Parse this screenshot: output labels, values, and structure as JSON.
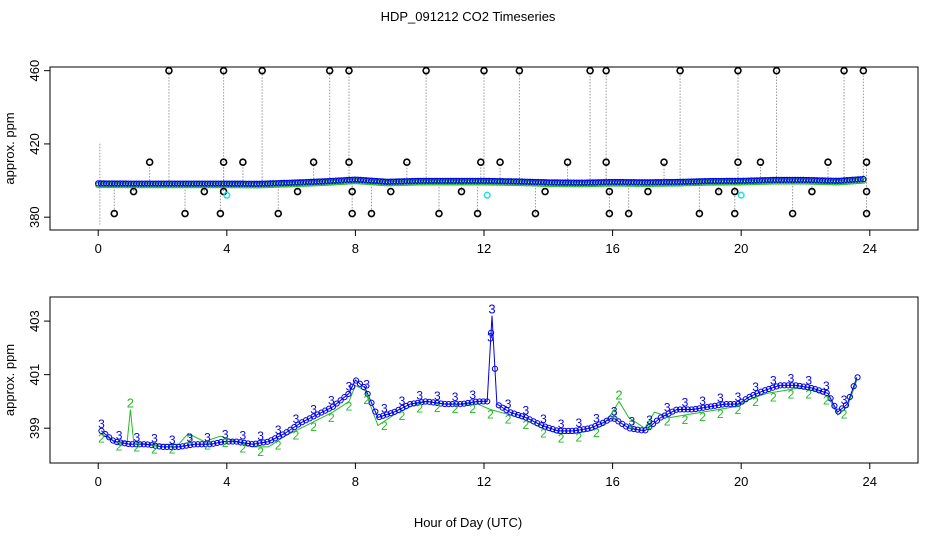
{
  "figure": {
    "title": "HDP_091212  CO2 Timeseries",
    "xlabel": "Hour of Day (UTC)"
  },
  "colors": {
    "black": "#000000",
    "blue": "#0000ee",
    "green": "#22bb22",
    "cyan": "#22dddd",
    "grey": "#999999"
  },
  "chart_data": [
    {
      "type": "scatter",
      "ylabel": "approx. ppm",
      "xlim": [
        -1.5,
        25.5
      ],
      "ylim": [
        373,
        462
      ],
      "xticks": [
        "0",
        "4",
        "8",
        "12",
        "16",
        "20",
        "24"
      ],
      "yticks": [
        "380",
        "420",
        "460"
      ],
      "outlier_points_circles": {
        "high_460": [
          2.2,
          3.9,
          5.1,
          7.2,
          7.8,
          10.2,
          12.0,
          13.1,
          15.3,
          15.8,
          18.1,
          19.9,
          21.1,
          23.2,
          23.8
        ],
        "low_382": [
          0.5,
          2.7,
          3.8,
          5.6,
          7.9,
          8.5,
          10.6,
          11.8,
          13.6,
          15.9,
          16.5,
          18.7,
          19.8,
          21.6,
          23.9
        ],
        "mid_410": [
          1.6,
          3.9,
          4.5,
          6.7,
          7.8,
          9.6,
          11.9,
          12.5,
          14.6,
          15.8,
          17.6,
          19.9,
          20.6,
          22.7,
          23.9
        ],
        "mid_394": [
          1.1,
          3.3,
          3.9,
          6.2,
          7.9,
          9.1,
          11.3,
          13.9,
          15.9,
          17.1,
          19.3,
          19.8,
          22.2,
          23.9
        ]
      },
      "cyan_points": [
        [
          4.0,
          392
        ],
        [
          12.1,
          392
        ],
        [
          20.0,
          392
        ]
      ],
      "baseline_series": {
        "name": "",
        "x": [
          0,
          1,
          2,
          3,
          4,
          5,
          6,
          7,
          8,
          9,
          10,
          11,
          12,
          13,
          14,
          15,
          16,
          17,
          18,
          19,
          20,
          21,
          22,
          23,
          23.8
        ],
        "y": [
          398.4,
          398.3,
          398.3,
          398.3,
          398.3,
          398.2,
          398.8,
          399.5,
          400.5,
          399.3,
          399.8,
          399.8,
          399.8,
          399.5,
          399.0,
          398.8,
          399.2,
          399.0,
          399.2,
          399.7,
          399.8,
          400.3,
          400.3,
          399.8,
          400.8
        ]
      }
    },
    {
      "type": "line",
      "ylabel": "approx. ppm",
      "xlim": [
        -1.5,
        25.5
      ],
      "ylim": [
        397.7,
        403.9
      ],
      "xticks": [
        "0",
        "4",
        "8",
        "12",
        "16",
        "20",
        "24"
      ],
      "yticks": [
        "399",
        "401",
        "403"
      ],
      "series": [
        {
          "name": "3",
          "x": [
            0.1,
            0.5,
            1,
            1.5,
            2,
            2.5,
            3,
            3.5,
            3.9,
            4.3,
            4.8,
            5.3,
            5.8,
            6.3,
            6.8,
            7.3,
            7.8,
            8.0,
            8.3,
            8.7,
            9.2,
            9.7,
            10.2,
            10.8,
            11.3,
            11.8,
            12.1,
            12.25,
            12.4,
            12.8,
            13.3,
            13.8,
            14.3,
            14.8,
            15.3,
            15.7,
            16.0,
            16.5,
            17.0,
            17.5,
            18.0,
            18.5,
            19.0,
            19.5,
            19.9,
            20.3,
            20.7,
            21.2,
            21.7,
            22.2,
            22.7,
            23.0,
            23.3,
            23.6
          ],
          "y": [
            398.9,
            398.5,
            398.4,
            398.4,
            398.3,
            398.3,
            398.4,
            398.4,
            398.5,
            398.5,
            398.4,
            398.5,
            398.8,
            399.2,
            399.5,
            399.8,
            400.3,
            400.8,
            400.5,
            399.4,
            399.6,
            399.9,
            400.0,
            399.9,
            399.9,
            400.0,
            400.0,
            403.2,
            399.9,
            399.6,
            399.4,
            399.1,
            398.9,
            398.9,
            399.0,
            399.2,
            399.4,
            399.0,
            398.9,
            399.4,
            399.7,
            399.7,
            399.8,
            399.9,
            399.9,
            400.2,
            400.4,
            400.6,
            400.6,
            400.5,
            400.3,
            399.6,
            399.9,
            400.9
          ]
        },
        {
          "name": "2",
          "x": [
            0.1,
            0.5,
            0.9,
            1.0,
            1.1,
            1.5,
            2,
            2.5,
            2.8,
            3.3,
            3.8,
            4.3,
            4.8,
            5.3,
            5.8,
            6.3,
            6.8,
            7.3,
            7.8,
            8.0,
            8.3,
            8.7,
            9.2,
            9.7,
            10.2,
            10.8,
            11.3,
            11.8,
            12.2,
            12.8,
            13.3,
            13.8,
            14.3,
            14.8,
            15.3,
            15.7,
            16.0,
            16.2,
            16.5,
            17.0,
            17.3,
            17.8,
            18.3,
            18.8,
            19.3,
            19.8,
            20.3,
            20.8,
            21.3,
            21.8,
            22.3,
            22.7,
            23.0,
            23.3,
            23.6
          ],
          "y": [
            398.8,
            398.5,
            398.5,
            399.7,
            398.5,
            398.4,
            398.4,
            398.4,
            398.8,
            398.5,
            398.7,
            398.5,
            398.3,
            398.3,
            398.7,
            399.0,
            399.3,
            399.6,
            400.0,
            400.6,
            400.4,
            399.1,
            399.5,
            399.8,
            400.0,
            399.9,
            399.9,
            399.9,
            399.7,
            399.5,
            399.3,
            399.0,
            398.8,
            398.8,
            398.9,
            399.1,
            399.6,
            400.0,
            399.4,
            399.0,
            399.6,
            399.4,
            399.5,
            399.6,
            399.7,
            399.8,
            400.1,
            400.3,
            400.4,
            400.5,
            400.4,
            400.2,
            399.5,
            399.8,
            400.8
          ]
        }
      ]
    }
  ]
}
